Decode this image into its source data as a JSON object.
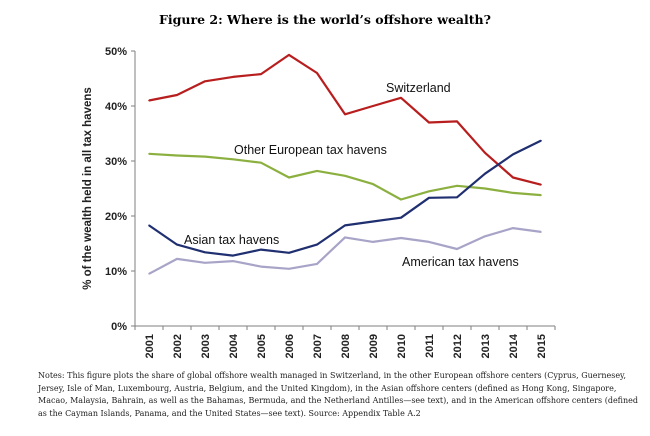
{
  "figure": {
    "title": "Figure 2: Where is the world’s offshore wealth?",
    "notes": "Notes: This figure plots the share of global offshore wealth managed in Switzerland, in the other European offshore centers (Cyprus, Guernesey, Jersey, Isle of Man, Luxembourg, Austria, Belgium, and the United Kingdom), in the Asian offshore centers (defined as Hong Kong, Singapore, Macao, Malaysia, Bahrain, as well as the Bahamas, Bermuda, and the Netherland Antilles—see text), and in the American offshore centers (defined as the Cayman Islands, Panama, and the United States—see text). Source: Appendix Table A.2"
  },
  "chart_data": {
    "type": "line",
    "title": "Figure 2: Where is the world’s offshore wealth?",
    "xlabel": "",
    "ylabel": "% of the wealth held in all tax havens",
    "ylim": [
      0,
      50
    ],
    "yticks": [
      "0%",
      "10%",
      "20%",
      "30%",
      "40%",
      "50%"
    ],
    "grid": false,
    "legend": "inline labels",
    "x": [
      "2001",
      "2002",
      "2003",
      "2004",
      "2005",
      "2006",
      "2007",
      "2008",
      "2009",
      "2010",
      "2011",
      "2012",
      "2013",
      "2014",
      "2015"
    ],
    "series": [
      {
        "name": "Switzerland",
        "color": "#b81e1e",
        "values": [
          41.0,
          42.0,
          44.5,
          45.3,
          45.8,
          49.3,
          46.0,
          38.5,
          40.0,
          41.5,
          37.0,
          37.2,
          31.5,
          27.0,
          25.7
        ]
      },
      {
        "name": "Other European tax havens",
        "color": "#8cb040",
        "values": [
          31.3,
          31.0,
          30.8,
          30.3,
          29.7,
          27.0,
          28.2,
          27.3,
          25.8,
          23.0,
          24.5,
          25.5,
          25.0,
          24.2,
          23.8
        ]
      },
      {
        "name": "Asian tax havens",
        "color": "#1f2f70",
        "values": [
          18.3,
          14.8,
          13.4,
          12.8,
          13.9,
          13.3,
          14.8,
          18.3,
          19.0,
          19.7,
          23.3,
          23.4,
          27.7,
          31.2,
          33.7
        ]
      },
      {
        "name": "American tax havens",
        "color": "#a8a4c8",
        "values": [
          9.5,
          12.2,
          11.5,
          11.8,
          10.8,
          10.4,
          11.3,
          16.1,
          15.3,
          16.0,
          15.3,
          14.0,
          16.3,
          17.8,
          17.1
        ]
      }
    ]
  }
}
